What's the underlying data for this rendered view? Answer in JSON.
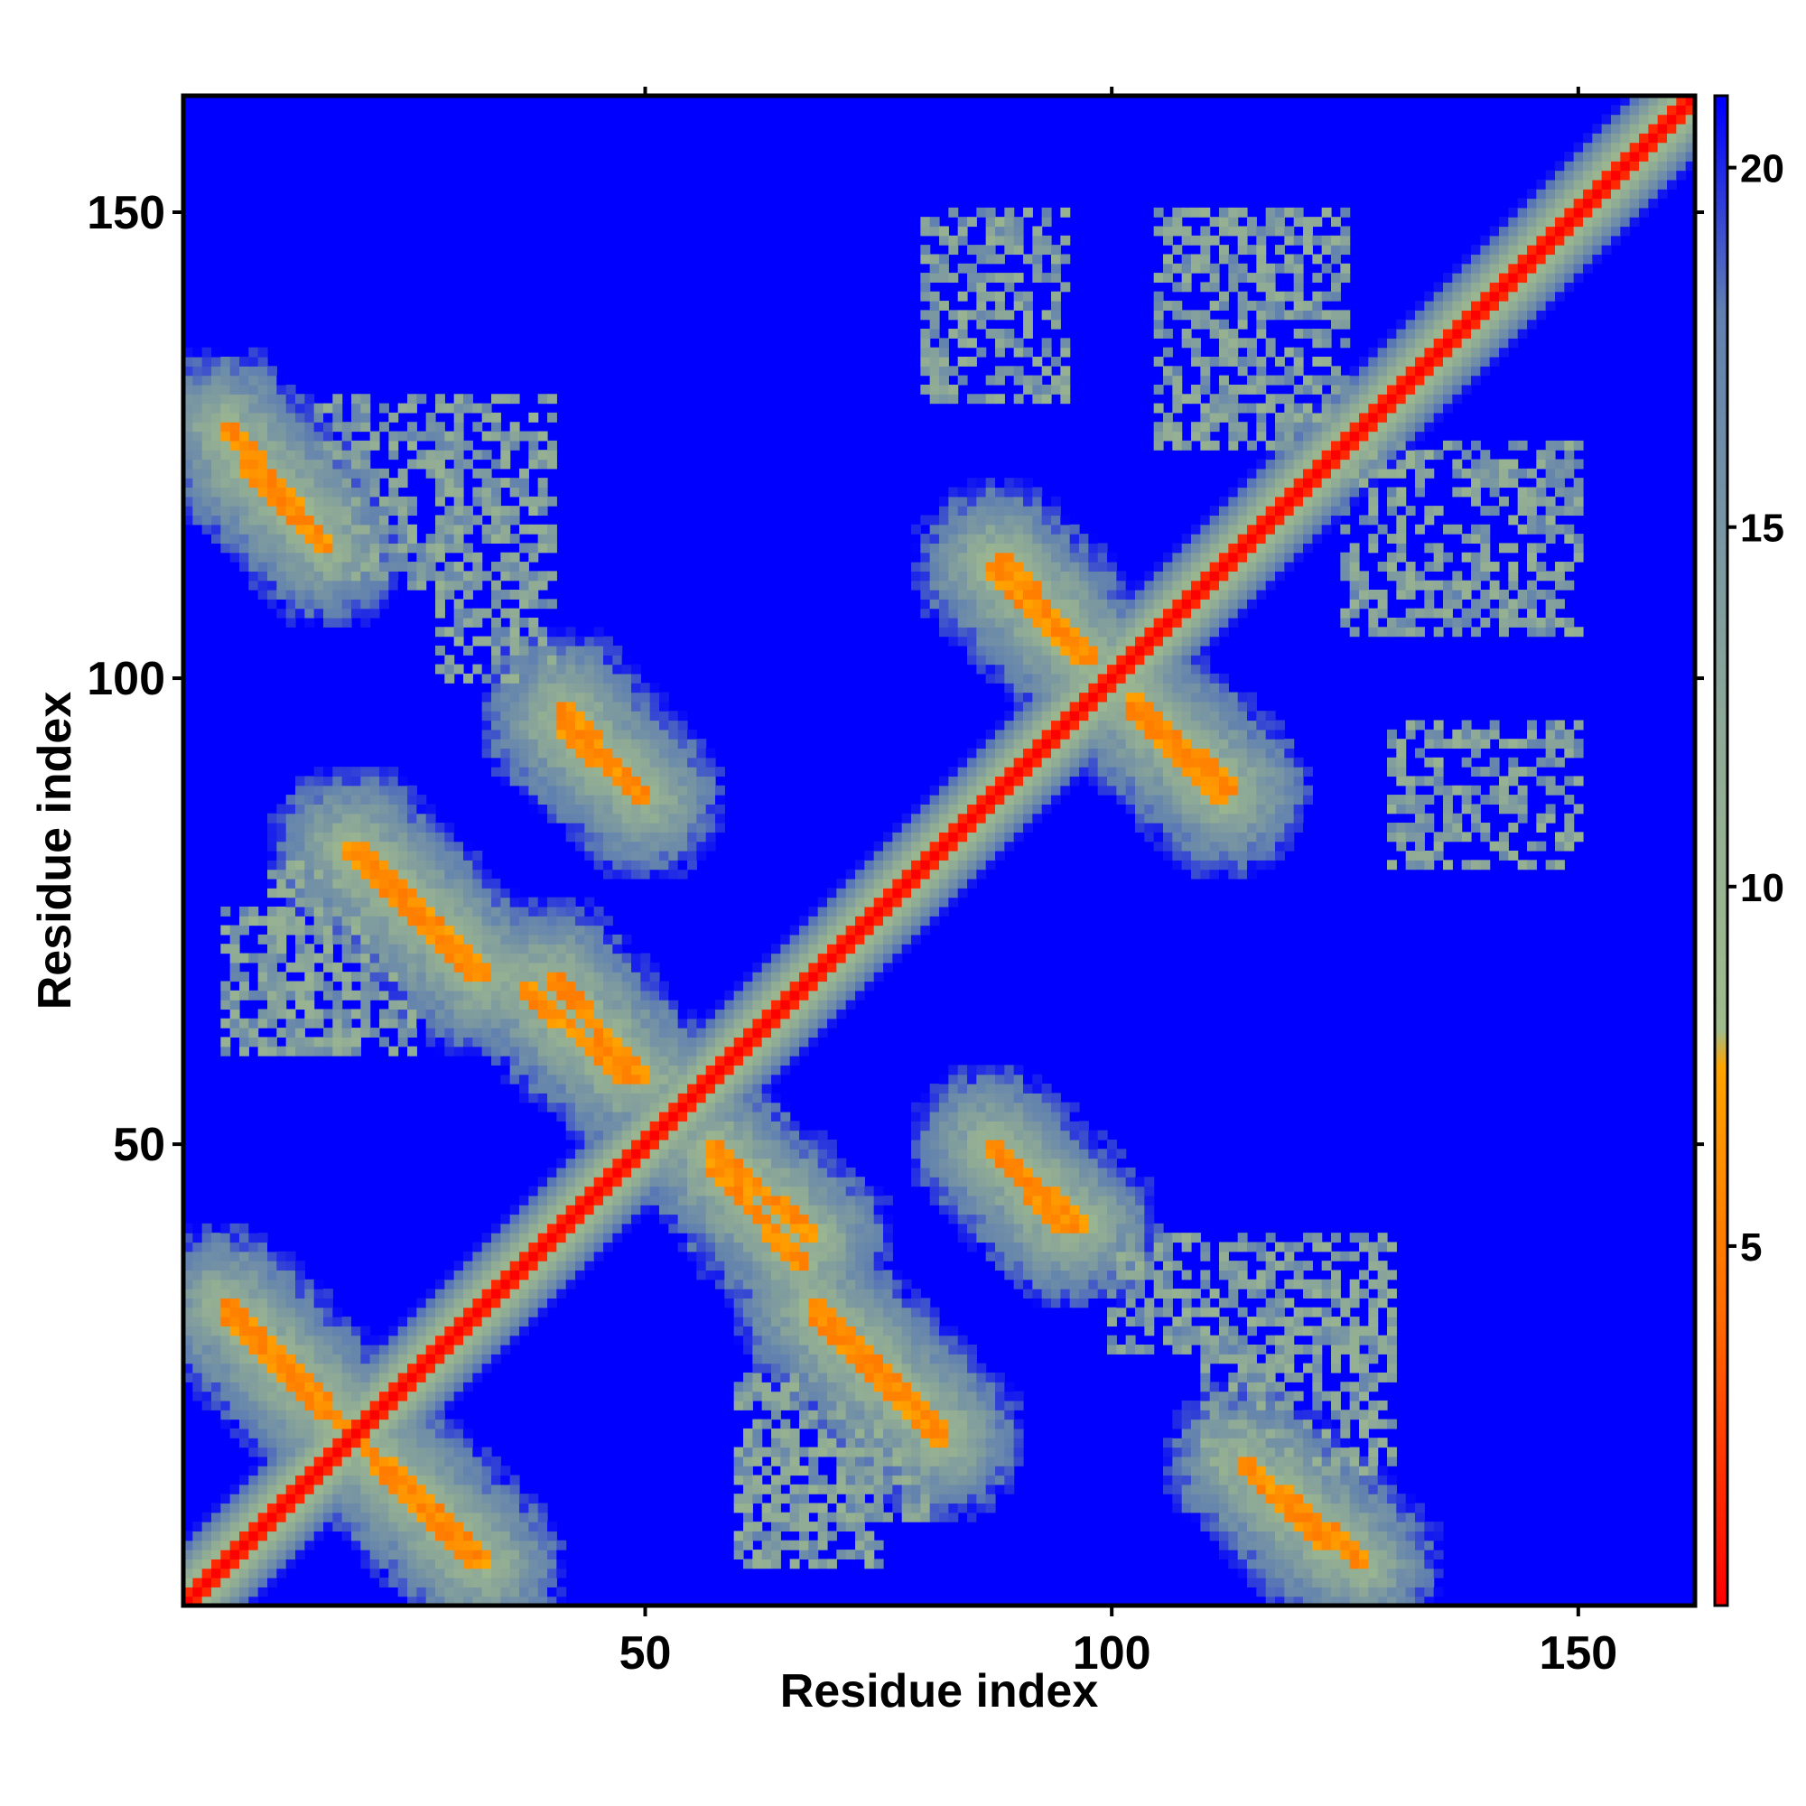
{
  "chart_data": {
    "type": "heatmap",
    "title": "",
    "xlabel": "Residue index",
    "ylabel": "Residue index",
    "xlim": [
      1,
      162
    ],
    "ylim": [
      1,
      162
    ],
    "x_ticks": [
      50,
      100,
      150
    ],
    "y_ticks": [
      50,
      100,
      150
    ],
    "colorbar": {
      "range": [
        0,
        21
      ],
      "ticks": [
        5,
        10,
        15,
        20
      ],
      "stops": [
        {
          "value": 0,
          "color": "#ff0000"
        },
        {
          "value": 4,
          "color": "#ff6a00"
        },
        {
          "value": 7.5,
          "color": "#ffa500"
        },
        {
          "value": 8,
          "color": "#a0bc8c"
        },
        {
          "value": 12,
          "color": "#8faa96"
        },
        {
          "value": 18,
          "color": "#6080b0"
        },
        {
          "value": 20.9,
          "color": "#0000ff"
        }
      ]
    },
    "background_value": 21,
    "grid": false,
    "symmetric": true,
    "features": {
      "diagonal_halfwidth": 1.6,
      "sheet_strands": [
        {
          "x": [
            5,
            33
          ],
          "y": [
            32,
            5
          ]
        },
        {
          "x": [
            19,
            33
          ],
          "y": [
            82,
            68
          ]
        },
        {
          "x": [
            7,
            16
          ],
          "y": [
            123,
            114
          ]
        },
        {
          "x": [
            41,
            50
          ],
          "y": [
            95,
            87
          ]
        },
        {
          "x": [
            40,
            50
          ],
          "y": [
            68,
            57
          ]
        },
        {
          "x": [
            57,
            67
          ],
          "y": [
            48,
            37
          ]
        },
        {
          "x": [
            68,
            82
          ],
          "y": [
            32,
            18
          ]
        },
        {
          "x": [
            87,
            97
          ],
          "y": [
            112,
            102
          ]
        },
        {
          "x": [
            87,
            97
          ],
          "y": [
            50,
            41
          ]
        },
        {
          "x": [
            102,
            113
          ],
          "y": [
            98,
            88
          ]
        },
        {
          "x": [
            118,
            127
          ],
          "y": [
            13,
            5
          ]
        }
      ],
      "helix_patches": [
        {
          "x": [
            28,
            40
          ],
          "y": [
            100,
            130
          ]
        },
        {
          "x": [
            10,
            25
          ],
          "y": [
            60,
            80
          ]
        },
        {
          "x": [
            60,
            75
          ],
          "y": [
            5,
            20
          ]
        },
        {
          "x": [
            110,
            130
          ],
          "y": [
            15,
            30
          ]
        },
        {
          "x": [
            105,
            125
          ],
          "y": [
            125,
            150
          ]
        },
        {
          "x": [
            80,
            95
          ],
          "y": [
            130,
            150
          ]
        }
      ]
    }
  }
}
